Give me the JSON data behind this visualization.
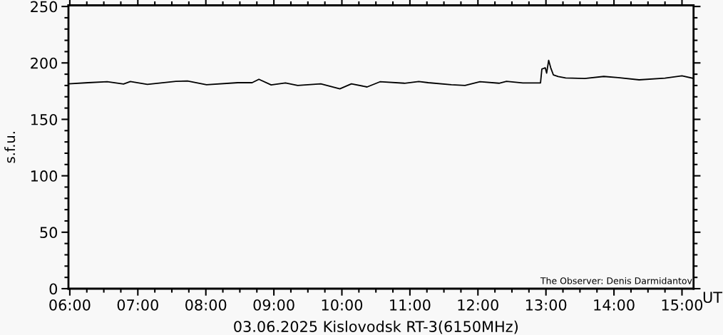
{
  "chart_data": {
    "type": "line",
    "ylabel": "s.f.u.",
    "xlabel": "UT",
    "annotations": [
      "03.06.2025 Kislovodsk RT-3(6150MHz)",
      "The Observer: Denis Darmidantov"
    ],
    "x": [
      5.98,
      6.27,
      6.55,
      6.79,
      6.89,
      7.14,
      7.56,
      7.73,
      8.01,
      8.47,
      8.68,
      8.78,
      8.96,
      9.17,
      9.35,
      9.69,
      9.97,
      10.14,
      10.37,
      10.56,
      10.92,
      11.13,
      11.27,
      11.61,
      11.81,
      12.03,
      12.31,
      12.42,
      12.66,
      12.92,
      12.94,
      12.99,
      13.01,
      13.04,
      13.07,
      13.11,
      13.18,
      13.29,
      13.57,
      13.85,
      14.06,
      14.37,
      14.75,
      15.0,
      15.16
    ],
    "series": [
      {
        "color": "#000000",
        "values": [
          181.5,
          182.5,
          183.3,
          181.3,
          183.5,
          181,
          183.7,
          184,
          180.7,
          182.5,
          182.5,
          185.5,
          180.5,
          182.3,
          180,
          181.5,
          177,
          181.5,
          178.7,
          183.3,
          182,
          183.5,
          182.5,
          180.7,
          180,
          183.3,
          182,
          183.7,
          182.3,
          182.3,
          194.6,
          195.7,
          191,
          202.3,
          195.7,
          189.3,
          188,
          186.7,
          186.2,
          188,
          187,
          185,
          186.5,
          188.5,
          186.4
        ]
      }
    ],
    "xlim": [
      5.98,
      15.17
    ],
    "ylim": [
      0,
      251
    ],
    "xticks": [
      {
        "value": 6,
        "label": "06:00"
      },
      {
        "value": 7,
        "label": "07:00"
      },
      {
        "value": 8,
        "label": "08:00"
      },
      {
        "value": 9,
        "label": "09:00"
      },
      {
        "value": 10,
        "label": "10:00"
      },
      {
        "value": 11,
        "label": "11:00"
      },
      {
        "value": 12,
        "label": "12:00"
      },
      {
        "value": 13,
        "label": "13:00"
      },
      {
        "value": 14,
        "label": "14:00"
      },
      {
        "value": 15,
        "label": "15:00"
      }
    ],
    "yticks": [
      0,
      50,
      100,
      150,
      200,
      250
    ],
    "grid": false,
    "legend": false,
    "marker": "none",
    "line_style": "solid"
  }
}
